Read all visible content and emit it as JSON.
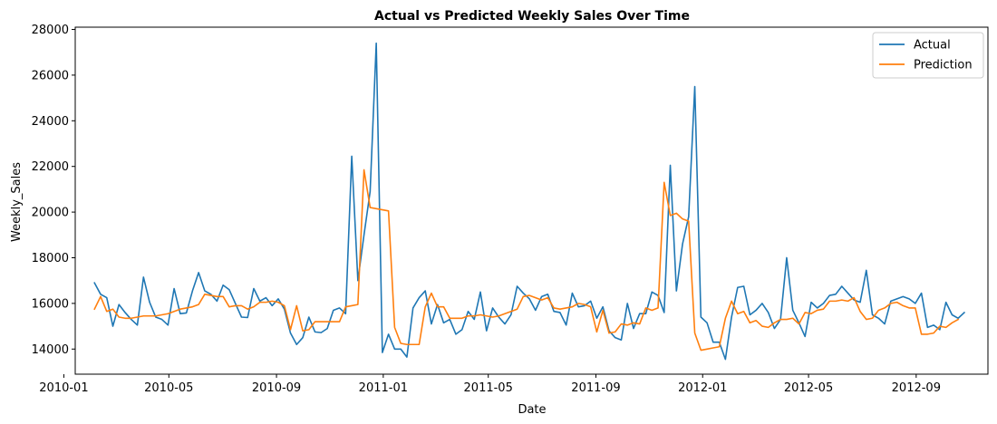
{
  "chart_data": {
    "type": "line",
    "title": "Actual vs Predicted Weekly Sales Over Time",
    "xlabel": "Date",
    "ylabel": "Weekly_Sales",
    "xlim": [
      "2010-01-14",
      "2012-11-22"
    ],
    "ylim": [
      12900,
      28100
    ],
    "grid": false,
    "legend_position": "top-right",
    "x_ticks": [
      "2010-01",
      "2010-05",
      "2010-09",
      "2011-01",
      "2011-05",
      "2011-09",
      "2012-01",
      "2012-05",
      "2012-09"
    ],
    "y_ticks": [
      14000,
      16000,
      18000,
      20000,
      22000,
      24000,
      26000,
      28000
    ],
    "x_start": "2010-02-05",
    "x_step_days": 7,
    "series": [
      {
        "name": "Actual",
        "color": "#1f77b4",
        "values": [
          16900,
          16400,
          16250,
          15000,
          15950,
          15600,
          15300,
          15050,
          17150,
          16050,
          15400,
          15300,
          15050,
          16650,
          15550,
          15580,
          16550,
          17350,
          16550,
          16400,
          16100,
          16800,
          16600,
          16000,
          15400,
          15380,
          16650,
          16100,
          16250,
          15900,
          16200,
          15750,
          14700,
          14200,
          14500,
          15400,
          14750,
          14720,
          14900,
          15700,
          15800,
          15550,
          22450,
          17000,
          19000,
          20900,
          27400,
          13850,
          14650,
          14000,
          14000,
          13650,
          15800,
          16250,
          16550,
          15100,
          15950,
          15150,
          15300,
          14650,
          14850,
          15650,
          15300,
          16500,
          14800,
          15800,
          15400,
          15100,
          15500,
          16750,
          16450,
          16200,
          15700,
          16300,
          16400,
          15650,
          15600,
          15050,
          16450,
          15850,
          15900,
          16100,
          15350,
          15850,
          14800,
          14500,
          14400,
          16000,
          14900,
          15550,
          15550,
          16500,
          16350,
          15600,
          22050,
          16550,
          18600,
          19800,
          25500,
          15400,
          15150,
          14300,
          14300,
          13550,
          15400,
          16700,
          16750,
          15500,
          15700,
          16000,
          15600,
          14900,
          15300,
          18000,
          15700,
          15150,
          14550,
          16050,
          15800,
          16000,
          16350,
          16400,
          16750,
          16450,
          16150,
          16050,
          17450,
          15500,
          15350,
          15100,
          16100,
          16200,
          16300,
          16200,
          16000,
          16450,
          14950,
          15050,
          14850,
          16050,
          15500,
          15350,
          15600
        ]
      },
      {
        "name": "Prediction",
        "color": "#ff7f0e",
        "values": [
          15750,
          16300,
          15650,
          15750,
          15400,
          15350,
          15350,
          15400,
          15450,
          15450,
          15450,
          15500,
          15550,
          15650,
          15750,
          15800,
          15850,
          15950,
          16400,
          16350,
          16300,
          16300,
          15850,
          15900,
          15900,
          15750,
          15850,
          16050,
          16050,
          16100,
          16050,
          15900,
          14850,
          15900,
          14800,
          14850,
          15200,
          15200,
          15200,
          15200,
          15200,
          15850,
          15900,
          15950,
          21850,
          20200,
          20150,
          20100,
          20050,
          14950,
          14250,
          14200,
          14200,
          14200,
          15850,
          16450,
          15850,
          15850,
          15350,
          15350,
          15350,
          15450,
          15450,
          15500,
          15450,
          15400,
          15450,
          15550,
          15650,
          15750,
          16300,
          16350,
          16250,
          16150,
          16250,
          15800,
          15750,
          15800,
          15850,
          16000,
          15950,
          15850,
          14750,
          15700,
          14700,
          14750,
          15100,
          15050,
          15150,
          15100,
          15800,
          15700,
          15800,
          21300,
          19850,
          19950,
          19700,
          19600,
          14700,
          13950,
          14000,
          14050,
          14100,
          15350,
          16100,
          15550,
          15650,
          15150,
          15250,
          15000,
          14950,
          15150,
          15300,
          15300,
          15350,
          15100,
          15600,
          15550,
          15700,
          15750,
          16100,
          16100,
          16150,
          16100,
          16250,
          15650,
          15300,
          15350,
          15700,
          15800,
          16000,
          16050,
          15900,
          15800,
          15800,
          14650,
          14650,
          14700,
          15000,
          14950,
          15150,
          15300
        ]
      }
    ]
  }
}
